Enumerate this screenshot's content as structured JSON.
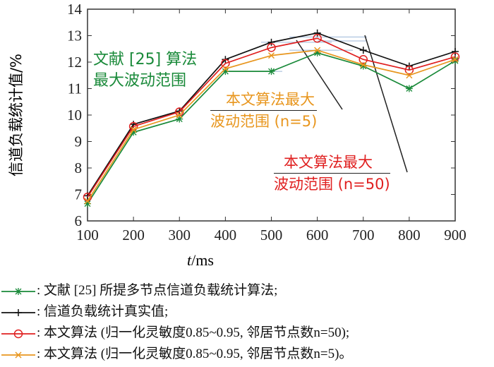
{
  "chart_data": {
    "type": "line",
    "xlabel": "t/ms",
    "xlabel_var": "t",
    "xlabel_unit": "/ms",
    "ylabel": "信道负载统计值/%",
    "x": [
      100,
      200,
      300,
      400,
      500,
      600,
      700,
      800,
      900
    ],
    "xlim": [
      100,
      900
    ],
    "ylim": [
      6,
      14
    ],
    "yticks": [
      6,
      7,
      8,
      9,
      10,
      11,
      12,
      13,
      14
    ],
    "xticks": [
      100,
      200,
      300,
      400,
      500,
      600,
      700,
      800,
      900
    ],
    "series": [
      {
        "name": "文献 [25] 所提多节点信道负载统计算法;",
        "color": "#1a8a3a",
        "marker": "asterisk",
        "values": [
          6.65,
          9.35,
          9.85,
          11.65,
          11.65,
          12.35,
          11.85,
          11.0,
          12.05
        ]
      },
      {
        "name": "信道负载统计真实值;",
        "color": "#111111",
        "marker": "plus",
        "values": [
          6.95,
          9.65,
          10.15,
          12.1,
          12.75,
          13.1,
          12.45,
          11.85,
          12.4
        ]
      },
      {
        "name": "本文算法 (归一化灵敏度0.85~0.95, 邻居节点数n=50);",
        "color": "#e02020",
        "marker": "circle",
        "values": [
          6.9,
          9.57,
          10.12,
          11.95,
          12.55,
          12.9,
          12.1,
          11.7,
          12.2
        ]
      },
      {
        "name": "本文算法 (归一化灵敏度0.85~0.95, 邻居节点数n=5)。",
        "color": "#e8961e",
        "marker": "x",
        "values": [
          6.75,
          9.45,
          10.0,
          11.75,
          12.25,
          12.45,
          11.9,
          11.5,
          12.1
        ]
      }
    ],
    "annotations": [
      {
        "line1": "文献 [25] 算法",
        "line2": "最大波动范围",
        "color": "#1a8a3a"
      },
      {
        "line1": "本文算法最大",
        "line2": "波动范围 (n=5)",
        "color": "#e8961e"
      },
      {
        "line1": "本文算法最大",
        "line2": "波动范围 (n=50)",
        "color": "#e02020"
      }
    ],
    "legend_position": "bottom",
    "legend_prefix": ": "
  }
}
